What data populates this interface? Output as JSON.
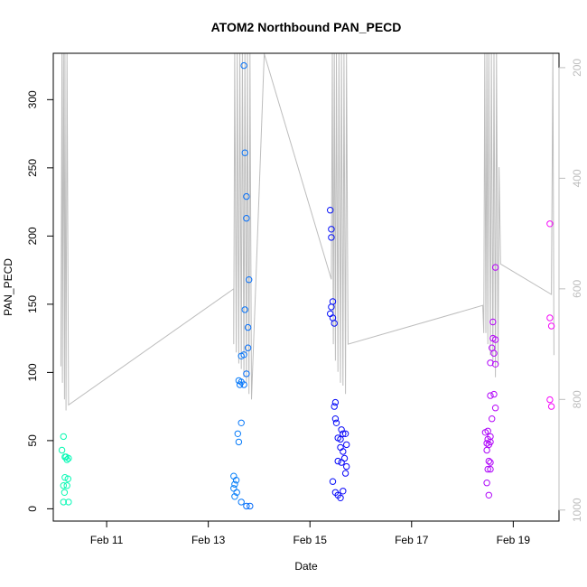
{
  "chart_data": {
    "type": "scatter",
    "title": "ATOM2 Northbound PAN_PECD",
    "xlabel": "Date",
    "ylabel": "PAN_PECD",
    "x_unit": "days since Feb 9 00:00 (axis shows dates)",
    "xlim": [
      9.95,
      19.9
    ],
    "ylim": [
      -9,
      334
    ],
    "x_ticks": [
      {
        "value": 11,
        "label": "Feb 11"
      },
      {
        "value": 13,
        "label": "Feb 13"
      },
      {
        "value": 15,
        "label": "Feb 15"
      },
      {
        "value": 17,
        "label": "Feb 17"
      },
      {
        "value": 19,
        "label": "Feb 19"
      }
    ],
    "y_ticks": [
      0,
      50,
      100,
      150,
      200,
      250,
      300
    ],
    "secondary_axis": {
      "side": "right",
      "color": "#bdbdbd",
      "reversed": true,
      "ylim": [
        1020,
        174
      ],
      "ticks": [
        200,
        400,
        600,
        800,
        1000
      ]
    },
    "points": [
      [
        10.15,
        53
      ],
      [
        10.12,
        43
      ],
      [
        10.18,
        38
      ],
      [
        10.22,
        36
      ],
      [
        10.25,
        37
      ],
      [
        10.2,
        38
      ],
      [
        10.18,
        23
      ],
      [
        10.24,
        22
      ],
      [
        10.15,
        17
      ],
      [
        10.22,
        17
      ],
      [
        10.17,
        12
      ],
      [
        10.15,
        5
      ],
      [
        10.25,
        5
      ],
      [
        13.5,
        24
      ],
      [
        13.55,
        21
      ],
      [
        13.52,
        18
      ],
      [
        13.5,
        15
      ],
      [
        13.56,
        12
      ],
      [
        13.52,
        9
      ],
      [
        13.65,
        5
      ],
      [
        13.75,
        2
      ],
      [
        13.82,
        2
      ],
      [
        13.58,
        55
      ],
      [
        13.6,
        49
      ],
      [
        13.65,
        63
      ],
      [
        13.6,
        94
      ],
      [
        13.65,
        93
      ],
      [
        13.62,
        91
      ],
      [
        13.7,
        91
      ],
      [
        13.65,
        112
      ],
      [
        13.7,
        113
      ],
      [
        13.75,
        99
      ],
      [
        13.78,
        118
      ],
      [
        13.78,
        133
      ],
      [
        13.72,
        146
      ],
      [
        13.8,
        168
      ],
      [
        13.75,
        213
      ],
      [
        13.75,
        229
      ],
      [
        13.72,
        261
      ],
      [
        13.7,
        325
      ],
      [
        15.4,
        219
      ],
      [
        15.42,
        205
      ],
      [
        15.42,
        199
      ],
      [
        15.45,
        152
      ],
      [
        15.42,
        148
      ],
      [
        15.4,
        143
      ],
      [
        15.45,
        140
      ],
      [
        15.48,
        136
      ],
      [
        15.5,
        78
      ],
      [
        15.48,
        75
      ],
      [
        15.5,
        66
      ],
      [
        15.52,
        63
      ],
      [
        15.55,
        52
      ],
      [
        15.6,
        51
      ],
      [
        15.62,
        58
      ],
      [
        15.65,
        55
      ],
      [
        15.7,
        55
      ],
      [
        15.72,
        47
      ],
      [
        15.6,
        45
      ],
      [
        15.65,
        42
      ],
      [
        15.55,
        35
      ],
      [
        15.62,
        34
      ],
      [
        15.68,
        37
      ],
      [
        15.72,
        31
      ],
      [
        15.7,
        26
      ],
      [
        15.45,
        20
      ],
      [
        15.5,
        12
      ],
      [
        15.55,
        10
      ],
      [
        15.6,
        8
      ],
      [
        15.65,
        13
      ],
      [
        18.45,
        56
      ],
      [
        18.5,
        57
      ],
      [
        18.55,
        53
      ],
      [
        18.5,
        51
      ],
      [
        18.48,
        48
      ],
      [
        18.52,
        47
      ],
      [
        18.55,
        49
      ],
      [
        18.48,
        43
      ],
      [
        18.58,
        66
      ],
      [
        18.52,
        35
      ],
      [
        18.55,
        34
      ],
      [
        18.5,
        29
      ],
      [
        18.55,
        29
      ],
      [
        18.48,
        19
      ],
      [
        18.52,
        10
      ],
      [
        18.55,
        83
      ],
      [
        18.62,
        84
      ],
      [
        18.65,
        74
      ],
      [
        18.55,
        107
      ],
      [
        18.65,
        106
      ],
      [
        18.58,
        118
      ],
      [
        18.62,
        114
      ],
      [
        18.6,
        125
      ],
      [
        18.65,
        124
      ],
      [
        18.6,
        137
      ],
      [
        18.65,
        177
      ],
      [
        19.72,
        209
      ],
      [
        19.72,
        140
      ],
      [
        19.75,
        134
      ],
      [
        19.72,
        80
      ],
      [
        19.75,
        75
      ]
    ],
    "secondary_line": [
      [
        10.1,
        740
      ],
      [
        10.12,
        175
      ],
      [
        10.13,
        770
      ],
      [
        10.15,
        175
      ],
      [
        10.17,
        800
      ],
      [
        10.18,
        175
      ],
      [
        10.2,
        820
      ],
      [
        10.22,
        175
      ],
      [
        10.25,
        810
      ],
      [
        13.5,
        600
      ],
      [
        13.5,
        700
      ],
      [
        13.52,
        175
      ],
      [
        13.55,
        715
      ],
      [
        13.57,
        175
      ],
      [
        13.6,
        735
      ],
      [
        13.62,
        175
      ],
      [
        13.65,
        745
      ],
      [
        13.67,
        175
      ],
      [
        13.7,
        760
      ],
      [
        13.72,
        175
      ],
      [
        13.75,
        770
      ],
      [
        13.77,
        175
      ],
      [
        13.8,
        790
      ],
      [
        13.82,
        175
      ],
      [
        13.85,
        800
      ],
      [
        14.1,
        175
      ],
      [
        15.42,
        583
      ],
      [
        15.44,
        175
      ],
      [
        15.46,
        700
      ],
      [
        15.48,
        175
      ],
      [
        15.5,
        730
      ],
      [
        15.52,
        175
      ],
      [
        15.55,
        750
      ],
      [
        15.57,
        175
      ],
      [
        15.6,
        770
      ],
      [
        15.62,
        175
      ],
      [
        15.65,
        775
      ],
      [
        15.67,
        175
      ],
      [
        15.7,
        790
      ],
      [
        15.72,
        175
      ],
      [
        15.75,
        700
      ],
      [
        18.4,
        630
      ],
      [
        18.42,
        680
      ],
      [
        18.44,
        175
      ],
      [
        18.46,
        680
      ],
      [
        18.48,
        175
      ],
      [
        18.5,
        700
      ],
      [
        18.52,
        175
      ],
      [
        18.55,
        720
      ],
      [
        18.57,
        175
      ],
      [
        18.6,
        740
      ],
      [
        18.62,
        175
      ],
      [
        18.65,
        760
      ],
      [
        18.67,
        175
      ],
      [
        18.7,
        740
      ],
      [
        18.72,
        380
      ],
      [
        18.75,
        555
      ],
      [
        19.75,
        610
      ],
      [
        19.78,
        175
      ],
      [
        19.8,
        720
      ]
    ],
    "grid": false,
    "legend": "none"
  }
}
